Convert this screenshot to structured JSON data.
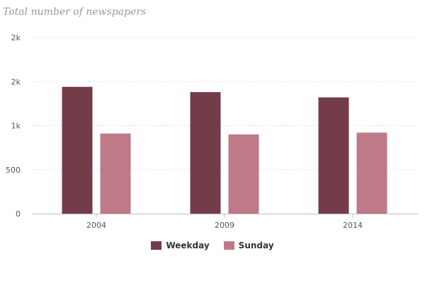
{
  "chart_data": {
    "type": "bar",
    "title": "Total number of newspapers",
    "xlabel": "",
    "ylabel": "",
    "categories": [
      "2004",
      "2009",
      "2014"
    ],
    "series": [
      {
        "name": "Weekday",
        "values": [
          1440,
          1380,
          1320
        ],
        "color": "#733c48"
      },
      {
        "name": "Sunday",
        "values": [
          910,
          900,
          920
        ],
        "color": "#bf7a87"
      }
    ],
    "y_ticks": [
      {
        "value": 0,
        "label": "0"
      },
      {
        "value": 500,
        "label": "500"
      },
      {
        "value": 1000,
        "label": "1k"
      },
      {
        "value": 1500,
        "label": "2k"
      },
      {
        "value": 2000,
        "label": "2k"
      }
    ],
    "ylim": [
      0,
      2000
    ],
    "grid": true,
    "legend_position": "bottom-center"
  }
}
